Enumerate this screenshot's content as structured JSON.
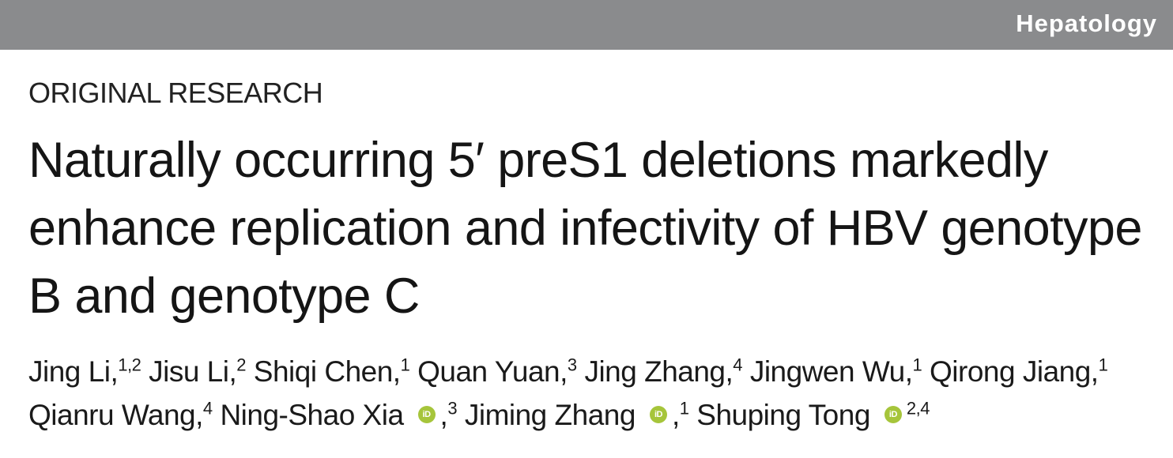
{
  "header": {
    "journal": "Hepatology"
  },
  "article": {
    "section": "ORIGINAL RESEARCH",
    "title": "Naturally occurring 5′ preS1 deletions markedly enhance replication and infectivity of HBV genotype B and genotype C"
  },
  "orcid_icon": {
    "label": "iD",
    "color": "#a6c53b"
  },
  "authors": [
    {
      "name": "Jing Li,",
      "sup": "1,2"
    },
    {
      "name": "Jisu Li,",
      "sup": "2"
    },
    {
      "name": "Shiqi Chen,",
      "sup": "1"
    },
    {
      "name": "Quan Yuan,",
      "sup": "3"
    },
    {
      "name": "Jing Zhang,",
      "sup": "4"
    },
    {
      "name": "Jingwen Wu,",
      "sup": "1"
    },
    {
      "name": "Qirong Jiang,",
      "sup": "1"
    },
    {
      "name": "Qianru Wang,",
      "sup": "4"
    },
    {
      "name": "Ning-Shao Xia",
      "sup": "3",
      "orcid": true,
      "after": ","
    },
    {
      "name": "Jiming Zhang",
      "sup": "1",
      "orcid": true,
      "after": ","
    },
    {
      "name": "Shuping Tong",
      "sup": "2,4",
      "orcid": true,
      "after": ""
    }
  ]
}
